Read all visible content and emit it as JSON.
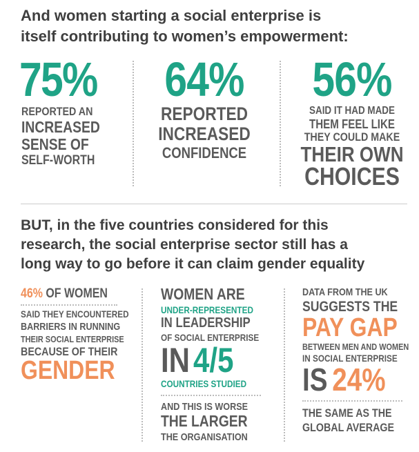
{
  "intro": {
    "heading": [
      "And women starting a social enterprise is",
      "itself contributing to women’s empowerment:"
    ]
  },
  "stats": [
    {
      "figure": "75%",
      "lines": [
        "REPORTED AN",
        "INCREASED",
        "SENSE OF",
        "SELF-WORTH"
      ]
    },
    {
      "figure": "64%",
      "lines": [
        "REPORTED",
        "INCREASED",
        "CONFIDENCE"
      ]
    },
    {
      "figure": "56%",
      "lines": [
        "SAID IT HAD MADE",
        "THEM FEEL LIKE",
        "THEY COULD MAKE",
        "THEIR OWN",
        "CHOICES"
      ]
    }
  ],
  "section2": {
    "heading": [
      "BUT, in the five countries considered for this",
      "research, the social enterprise sector still has a",
      "long way to go before it can claim gender equality"
    ]
  },
  "facts": [
    {
      "highlight": "46%",
      "lead": "OF WOMEN",
      "lines": [
        "SAID THEY ENCOUNTERED",
        "BARRIERS IN RUNNING",
        "THEIR SOCIAL ENTERPRISE",
        "BECAUSE OF THEIR"
      ],
      "emphasis": "GENDER"
    },
    {
      "lines": [
        "WOMEN ARE",
        "UNDER-REPRESENTED",
        "IN LEADERSHIP",
        "OF SOCIAL ENTERPRISE"
      ],
      "prefix": "IN",
      "highlight": "4/5",
      "after": "COUNTRIES STUDIED",
      "note": [
        "AND THIS IS WORSE",
        "THE LARGER",
        "THE ORGANISATION"
      ]
    },
    {
      "lines": [
        "DATA FROM THE UK",
        "SUGGESTS THE"
      ],
      "emphasis": "PAY GAP",
      "lines2": [
        "BETWEEN MEN AND WOMEN",
        "IN SOCIAL ENTERPRISE"
      ],
      "prefix": "IS",
      "highlight": "24%",
      "note": [
        "THE SAME AS THE",
        "GLOBAL AVERAGE"
      ]
    }
  ]
}
